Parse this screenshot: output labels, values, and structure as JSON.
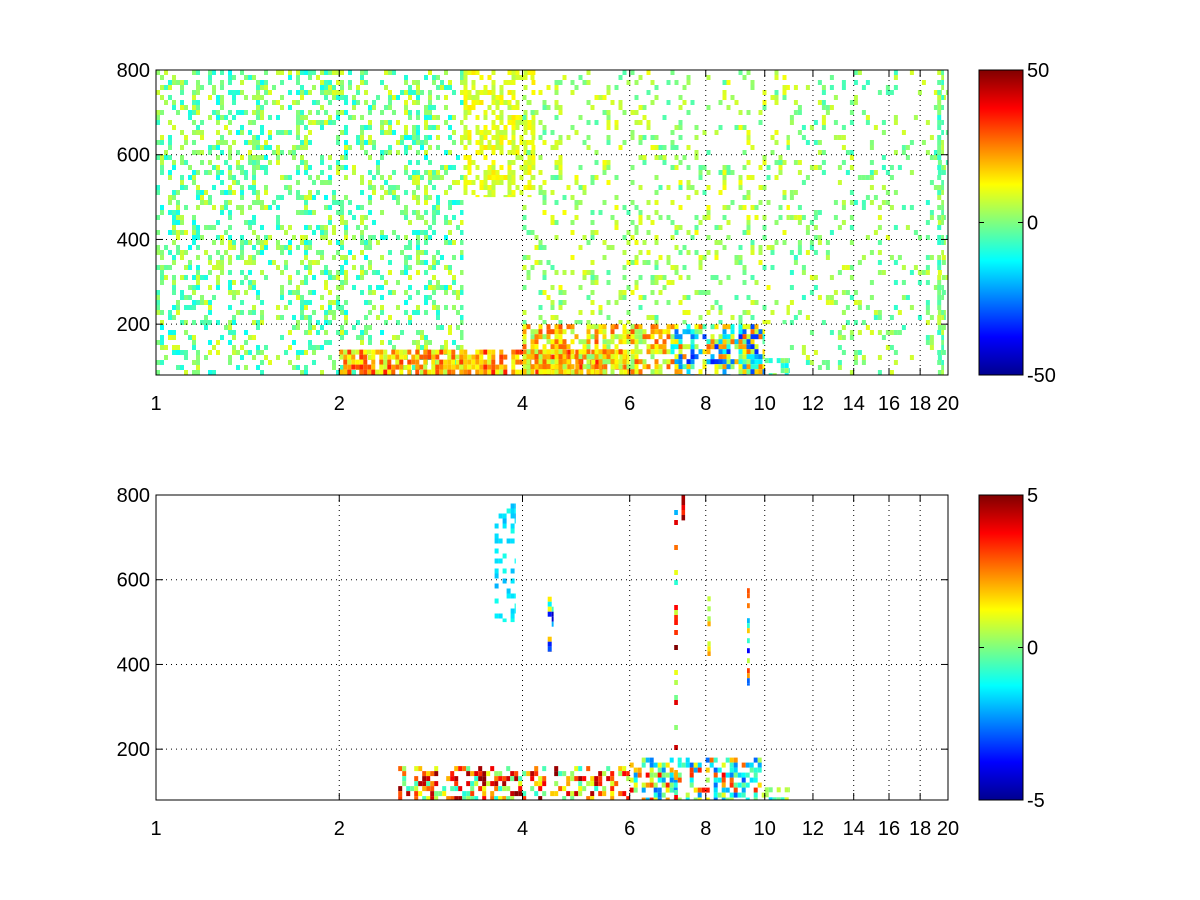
{
  "chart_data": [
    {
      "type": "heatmap",
      "title": "",
      "xlabel": "",
      "ylabel": "",
      "xscale": "log",
      "xlim": [
        1,
        20
      ],
      "ylim": [
        80,
        800
      ],
      "x_ticks": [
        1,
        2,
        4,
        6,
        8,
        10,
        12,
        14,
        16,
        18,
        20
      ],
      "x_tick_labels": [
        "1",
        "2",
        "4",
        "6",
        "8",
        "10",
        "12",
        "14",
        "16",
        "18",
        "20"
      ],
      "y_ticks": [
        200,
        400,
        600,
        800
      ],
      "y_tick_labels": [
        "200",
        "400",
        "600",
        "800"
      ],
      "grid": true,
      "colormap": "jet",
      "colorbar": {
        "range": [
          -50,
          50
        ],
        "ticks": [
          -50,
          0,
          50
        ],
        "tick_labels": [
          "-50",
          "0",
          "50"
        ]
      },
      "regions": [
        {
          "x": [
            1,
            3.2
          ],
          "y": [
            80,
            800
          ],
          "density": 0.35,
          "value_range": [
            -12,
            10
          ],
          "note": "sparse thin streaks"
        },
        {
          "x": [
            3.2,
            4.2
          ],
          "y": [
            500,
            800
          ],
          "density": 0.5,
          "value_range": [
            5,
            15
          ]
        },
        {
          "x": [
            2,
            6
          ],
          "y": [
            80,
            140
          ],
          "density": 0.9,
          "value_range": [
            5,
            35
          ]
        },
        {
          "x": [
            4,
            7
          ],
          "y": [
            80,
            200
          ],
          "density": 0.75,
          "value_range": [
            0,
            30
          ]
        },
        {
          "x": [
            7,
            10
          ],
          "y": [
            80,
            200
          ],
          "density": 0.75,
          "value_range": [
            -35,
            30
          ]
        },
        {
          "x": [
            10,
            11
          ],
          "y": [
            80,
            120
          ],
          "density": 0.5,
          "value_range": [
            -15,
            5
          ]
        },
        {
          "x": [
            4,
            11
          ],
          "y": [
            200,
            800
          ],
          "density": 0.2,
          "value_range": [
            -5,
            12
          ],
          "note": "vertical streaks"
        },
        {
          "x": [
            11,
            20
          ],
          "y": [
            80,
            800
          ],
          "density": 0.15,
          "value_range": [
            -8,
            10
          ],
          "note": "sparse columns"
        },
        {
          "x": [
            19.2,
            19.7
          ],
          "y": [
            80,
            800
          ],
          "density": 0.7,
          "value_range": [
            -10,
            8
          ],
          "note": "dense column"
        }
      ]
    },
    {
      "type": "heatmap",
      "title": "",
      "xlabel": "",
      "ylabel": "",
      "xscale": "log",
      "xlim": [
        1,
        20
      ],
      "ylim": [
        80,
        800
      ],
      "x_ticks": [
        1,
        2,
        4,
        6,
        8,
        10,
        12,
        14,
        16,
        18,
        20
      ],
      "x_tick_labels": [
        "1",
        "2",
        "4",
        "6",
        "8",
        "10",
        "12",
        "14",
        "16",
        "18",
        "20"
      ],
      "y_ticks": [
        200,
        400,
        600,
        800
      ],
      "y_tick_labels": [
        "200",
        "400",
        "600",
        "800"
      ],
      "grid": true,
      "colormap": "jet",
      "colorbar": {
        "range": [
          -5,
          5
        ],
        "ticks": [
          -5,
          0,
          5
        ],
        "tick_labels": [
          "-5",
          "0",
          "5"
        ]
      },
      "regions": [
        {
          "x": [
            2.5,
            6
          ],
          "y": [
            80,
            160
          ],
          "density": 0.5,
          "value_range": [
            -1,
            5
          ]
        },
        {
          "x": [
            6,
            10
          ],
          "y": [
            80,
            180
          ],
          "density": 0.5,
          "value_range": [
            -3,
            4
          ]
        },
        {
          "x": [
            10,
            11
          ],
          "y": [
            80,
            110
          ],
          "density": 0.4,
          "value_range": [
            -2,
            1
          ]
        },
        {
          "x": [
            3.6,
            3.9
          ],
          "y": [
            500,
            780
          ],
          "density": 0.3,
          "value_range": [
            -2,
            -1
          ]
        },
        {
          "x": [
            4.4,
            4.5
          ],
          "y": [
            430,
            560
          ],
          "density": 0.6,
          "value_range": [
            -5,
            5
          ]
        },
        {
          "x": [
            7.1,
            7.2
          ],
          "y": [
            80,
            800
          ],
          "density": 0.25,
          "value_range": [
            -2,
            5
          ]
        },
        {
          "x": [
            7.3,
            7.4
          ],
          "y": [
            740,
            800
          ],
          "density": 0.8,
          "value_range": [
            3,
            5
          ]
        },
        {
          "x": [
            8.05,
            8.15
          ],
          "y": [
            420,
            620
          ],
          "density": 0.8,
          "value_range": [
            -1,
            3
          ]
        },
        {
          "x": [
            9.35,
            9.45
          ],
          "y": [
            350,
            580
          ],
          "density": 0.8,
          "value_range": [
            -4,
            5
          ]
        }
      ]
    }
  ]
}
